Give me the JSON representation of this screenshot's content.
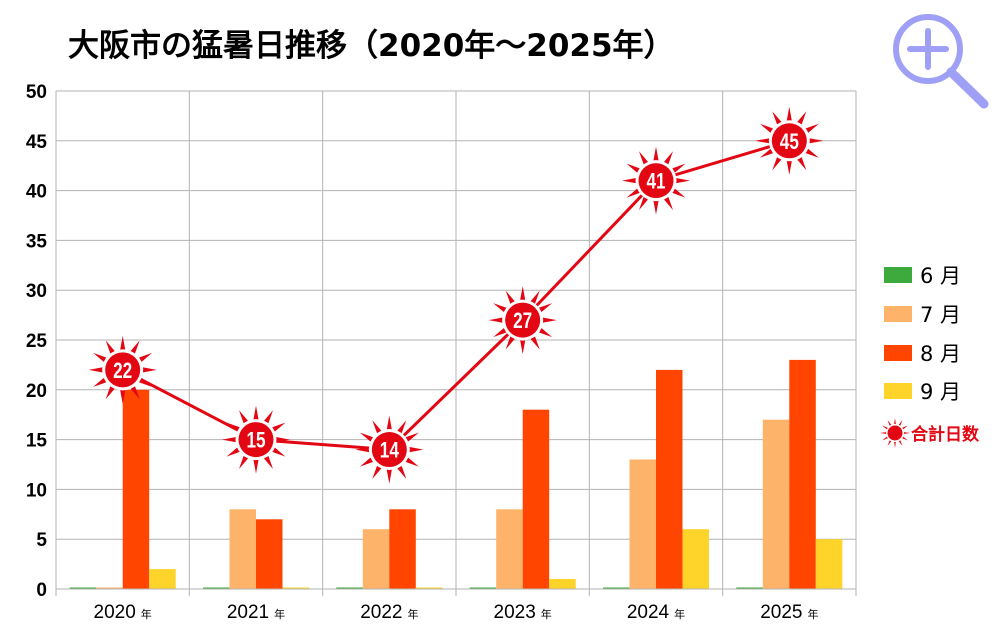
{
  "chart_data": {
    "type": "bar",
    "title": "大阪市の猛暑日推移（2020年〜2025年）",
    "categories": [
      "2020",
      "2021",
      "2022",
      "2023",
      "2024",
      "2025"
    ],
    "category_suffix": "年",
    "ylim": [
      0,
      50
    ],
    "yticks": [
      0,
      5,
      10,
      15,
      20,
      25,
      30,
      35,
      40,
      45,
      50
    ],
    "grid": true,
    "legend_position": "right",
    "series": [
      {
        "name": "6月",
        "label": "6 月",
        "color": "#3daa3d",
        "values": [
          0,
          0,
          0,
          0,
          0,
          0
        ]
      },
      {
        "name": "7月",
        "label": "7 月",
        "color": "#fdb36a",
        "values": [
          0,
          8,
          6,
          8,
          13,
          17
        ]
      },
      {
        "name": "8月",
        "label": "8 月",
        "color": "#ff4500",
        "values": [
          20,
          7,
          8,
          18,
          22,
          23
        ]
      },
      {
        "name": "9月",
        "label": "9 月",
        "color": "#ffd42a",
        "values": [
          2,
          0,
          0,
          1,
          6,
          5
        ]
      }
    ],
    "total_series": {
      "name": "合計日数",
      "type": "line",
      "color": "#e30613",
      "values": [
        22,
        15,
        14,
        27,
        41,
        45
      ]
    }
  },
  "ui": {
    "zoom_icon": "zoom-in-icon",
    "zoom_color": "#9f9ff5"
  }
}
